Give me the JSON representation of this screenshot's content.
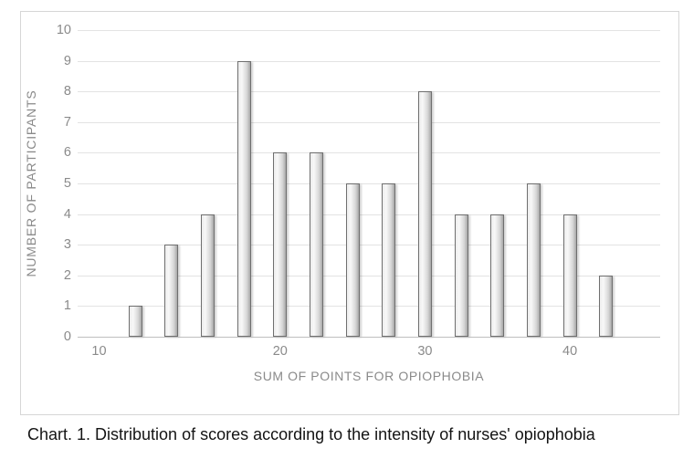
{
  "figure": {
    "caption": "Chart. 1. Distribution of scores according to the intensity of nurses' opiophobia"
  },
  "chart_data": {
    "type": "bar",
    "title": "",
    "xlabel": "SUM OF POINTS FOR OPIOPHOBIA",
    "ylabel": "NUMBER OF PARTICIPANTS",
    "values": [
      1,
      3,
      4,
      9,
      6,
      6,
      5,
      5,
      8,
      4,
      4,
      5,
      4,
      2
    ],
    "bar_slots": [
      1,
      2,
      3,
      4,
      5,
      6,
      7,
      8,
      9,
      10,
      11,
      12,
      13,
      14
    ],
    "x_ticks": [
      {
        "label": "10",
        "slot": 0
      },
      {
        "label": "20",
        "slot": 5
      },
      {
        "label": "30",
        "slot": 9
      },
      {
        "label": "40",
        "slot": 13
      }
    ],
    "y_ticks": [
      "0",
      "1",
      "2",
      "3",
      "4",
      "5",
      "6",
      "7",
      "8",
      "9",
      "10"
    ],
    "ylim": [
      0,
      10
    ],
    "grid": true,
    "legend": false
  },
  "colors": {
    "tick_label": "#8a8a8a",
    "axis_title": "#8a8a8a",
    "gridline": "#e3e3e3",
    "axis_line": "#bfbfbf",
    "frame_border": "#d6d6d6",
    "caption_text": "#141414",
    "bar_border": "#6f6f6f",
    "bar_fill_light": "#f8f8f8",
    "bar_fill_dark": "#a8a8a8"
  }
}
